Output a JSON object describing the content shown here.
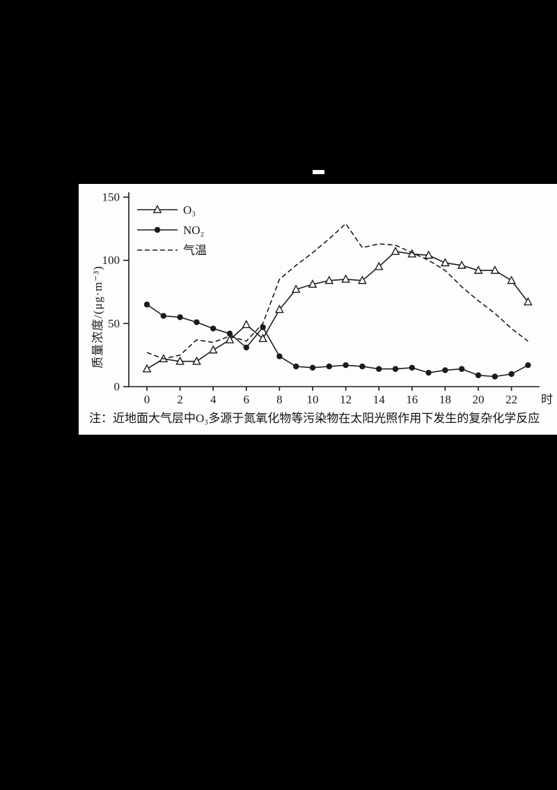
{
  "page": {
    "background_color": "#000000",
    "panel_color": "#fdfdfd",
    "line_color": "#1a1a1a"
  },
  "chart_data": {
    "type": "line",
    "title": "",
    "x_hours": [
      0,
      1,
      2,
      3,
      4,
      5,
      6,
      7,
      8,
      9,
      10,
      11,
      12,
      13,
      14,
      15,
      16,
      17,
      18,
      19,
      20,
      21,
      22,
      23
    ],
    "xticks": [
      0,
      2,
      4,
      6,
      8,
      10,
      12,
      14,
      16,
      18,
      20,
      22
    ],
    "x_unit_label": "时",
    "yticks": [
      0,
      50,
      100,
      150
    ],
    "ylim": [
      0,
      150
    ],
    "ylabel": "质量浓度/(μg·m⁻³)",
    "legend_position": "top-left",
    "grid": "off",
    "series": [
      {
        "id": "o3",
        "name": "O₃",
        "marker": "triangle",
        "line": "solid",
        "values": [
          14,
          22,
          20,
          20,
          29,
          37,
          49,
          38,
          61,
          77,
          81,
          84,
          85,
          84,
          95,
          107,
          105,
          104,
          98,
          96,
          92,
          92,
          84,
          67
        ]
      },
      {
        "id": "no2",
        "name": "NO₂",
        "marker": "circle",
        "line": "solid",
        "values": [
          65,
          56,
          55,
          51,
          46,
          42,
          31,
          47,
          24,
          16,
          15,
          16,
          17,
          16,
          14,
          14,
          15,
          11,
          13,
          14,
          9,
          8,
          10,
          17
        ]
      },
      {
        "id": "temp",
        "name": "气温",
        "marker": "none",
        "line": "dashed",
        "values": [
          27,
          22,
          25,
          37,
          35,
          40,
          36,
          50,
          85,
          96,
          106,
          117,
          129,
          110,
          113,
          112,
          106,
          100,
          92,
          79,
          68,
          58,
          46,
          36
        ]
      }
    ]
  },
  "note": {
    "text": "注：近地面大气层中O₃多源于氮氧化物等污染物在太阳光照作用下发生的复杂化学反应"
  }
}
